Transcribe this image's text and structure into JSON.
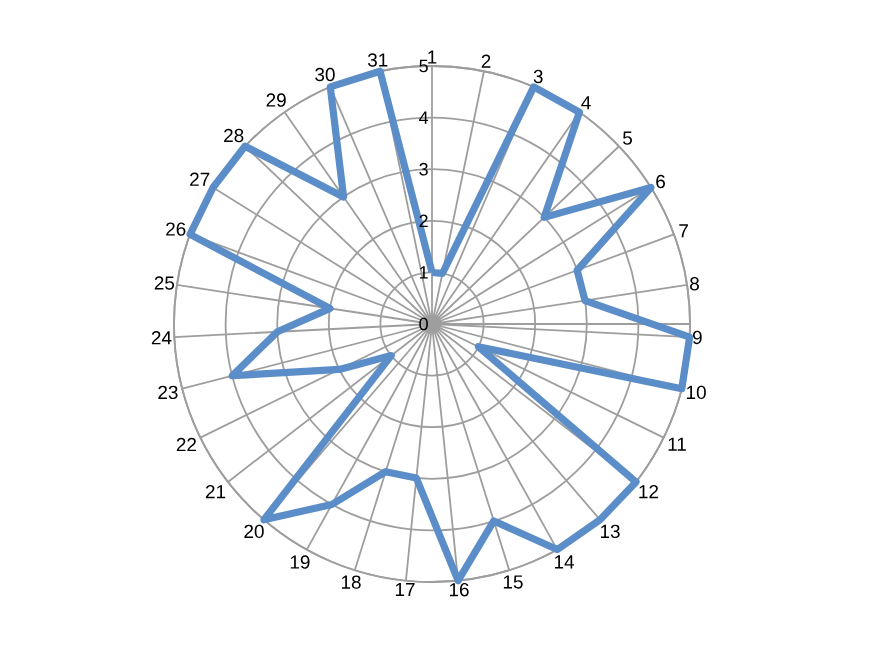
{
  "chart_data": {
    "type": "radar",
    "categories": [
      "1",
      "2",
      "3",
      "4",
      "5",
      "6",
      "7",
      "8",
      "9",
      "10",
      "11",
      "12",
      "13",
      "14",
      "15",
      "16",
      "17",
      "18",
      "19",
      "20",
      "21",
      "22",
      "23",
      "24",
      "25",
      "26",
      "27",
      "28",
      "29",
      "30",
      "31"
    ],
    "series": [
      {
        "color": "#5b8dc8",
        "values": [
          1,
          1,
          5,
          5,
          3,
          5,
          3,
          3,
          5,
          5,
          1,
          5,
          5,
          5,
          4,
          5,
          3,
          3,
          4,
          5,
          1,
          2,
          4,
          3,
          2,
          5,
          5,
          5,
          3,
          5,
          5
        ]
      }
    ],
    "ylim": [
      0,
      5
    ],
    "yticks": [
      0,
      1,
      2,
      3,
      4,
      5
    ],
    "grid": true
  }
}
